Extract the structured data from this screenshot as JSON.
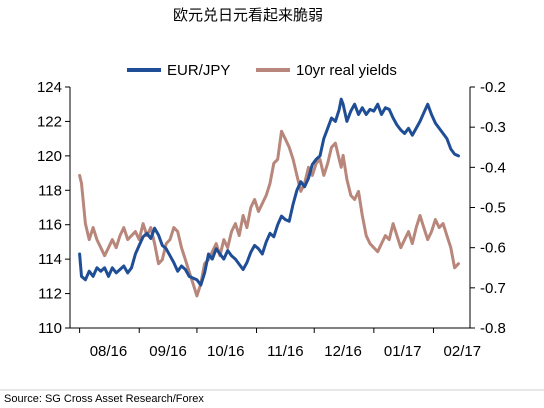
{
  "chart_data": {
    "type": "line",
    "title": "欧元兑日元看起来脆弱",
    "source": "Source: SG Cross Asset Research/Forex",
    "legend_position": "top",
    "grid": false,
    "x_labels": [
      "08/16",
      "09/16",
      "10/16",
      "11/16",
      "12/16",
      "01/17",
      "02/17"
    ],
    "y_left": {
      "ticks": [
        "124",
        "122",
        "120",
        "118",
        "116",
        "114",
        "112",
        "110"
      ],
      "range": [
        110,
        124
      ]
    },
    "y_right": {
      "ticks": [
        "-0.2",
        "-0.3",
        "-0.4",
        "-0.5",
        "-0.6",
        "-0.7",
        "-0.8"
      ],
      "range": [
        -0.8,
        -0.2
      ]
    },
    "series": [
      {
        "name": "EUR/JPY",
        "axis": "left",
        "color": "#1f4e96",
        "points": [
          [
            "2016-08-01",
            114.3
          ],
          [
            "2016-08-02",
            113.0
          ],
          [
            "2016-08-04",
            112.8
          ],
          [
            "2016-08-06",
            113.3
          ],
          [
            "2016-08-08",
            113.0
          ],
          [
            "2016-08-10",
            113.5
          ],
          [
            "2016-08-12",
            113.3
          ],
          [
            "2016-08-14",
            113.5
          ],
          [
            "2016-08-16",
            113.0
          ],
          [
            "2016-08-18",
            113.5
          ],
          [
            "2016-08-20",
            113.2
          ],
          [
            "2016-08-22",
            113.4
          ],
          [
            "2016-08-24",
            113.6
          ],
          [
            "2016-08-26",
            113.2
          ],
          [
            "2016-08-28",
            113.5
          ],
          [
            "2016-08-30",
            114.3
          ],
          [
            "2016-09-01",
            114.8
          ],
          [
            "2016-09-03",
            115.3
          ],
          [
            "2016-09-05",
            115.5
          ],
          [
            "2016-09-07",
            115.2
          ],
          [
            "2016-09-09",
            115.8
          ],
          [
            "2016-09-11",
            115.4
          ],
          [
            "2016-09-13",
            114.8
          ],
          [
            "2016-09-15",
            114.6
          ],
          [
            "2016-09-17",
            114.2
          ],
          [
            "2016-09-19",
            113.8
          ],
          [
            "2016-09-21",
            113.3
          ],
          [
            "2016-09-23",
            113.6
          ],
          [
            "2016-09-25",
            113.4
          ],
          [
            "2016-09-27",
            113.0
          ],
          [
            "2016-09-29",
            112.9
          ],
          [
            "2016-10-01",
            112.8
          ],
          [
            "2016-10-03",
            112.5
          ],
          [
            "2016-10-05",
            113.2
          ],
          [
            "2016-10-07",
            114.3
          ],
          [
            "2016-10-09",
            114.0
          ],
          [
            "2016-10-11",
            114.6
          ],
          [
            "2016-10-13",
            114.3
          ],
          [
            "2016-10-15",
            114.0
          ],
          [
            "2016-10-17",
            114.5
          ],
          [
            "2016-10-19",
            114.2
          ],
          [
            "2016-10-21",
            114.0
          ],
          [
            "2016-10-23",
            113.7
          ],
          [
            "2016-10-25",
            113.4
          ],
          [
            "2016-10-27",
            113.8
          ],
          [
            "2016-10-29",
            114.4
          ],
          [
            "2016-10-31",
            114.8
          ],
          [
            "2016-11-02",
            114.6
          ],
          [
            "2016-11-04",
            114.3
          ],
          [
            "2016-11-06",
            115.0
          ],
          [
            "2016-11-08",
            115.5
          ],
          [
            "2016-11-10",
            115.3
          ],
          [
            "2016-11-12",
            116.0
          ],
          [
            "2016-11-14",
            116.5
          ],
          [
            "2016-11-16",
            116.3
          ],
          [
            "2016-11-18",
            116.2
          ],
          [
            "2016-11-20",
            117.2
          ],
          [
            "2016-11-22",
            118.0
          ],
          [
            "2016-11-24",
            118.5
          ],
          [
            "2016-11-26",
            118.2
          ],
          [
            "2016-11-28",
            118.7
          ],
          [
            "2016-11-30",
            119.5
          ],
          [
            "2016-12-02",
            119.8
          ],
          [
            "2016-12-04",
            120.0
          ],
          [
            "2016-12-06",
            121.0
          ],
          [
            "2016-12-08",
            121.6
          ],
          [
            "2016-12-10",
            122.2
          ],
          [
            "2016-12-12",
            122.0
          ],
          [
            "2016-12-14",
            122.7
          ],
          [
            "2016-12-15",
            123.3
          ],
          [
            "2016-12-16",
            123.0
          ],
          [
            "2016-12-18",
            122.0
          ],
          [
            "2016-12-20",
            122.6
          ],
          [
            "2016-12-22",
            123.0
          ],
          [
            "2016-12-24",
            122.4
          ],
          [
            "2016-12-26",
            122.8
          ],
          [
            "2016-12-28",
            122.4
          ],
          [
            "2016-12-30",
            122.7
          ],
          [
            "2017-01-01",
            122.6
          ],
          [
            "2017-01-03",
            123.0
          ],
          [
            "2017-01-05",
            122.4
          ],
          [
            "2017-01-07",
            122.8
          ],
          [
            "2017-01-09",
            122.7
          ],
          [
            "2017-01-11",
            122.2
          ],
          [
            "2017-01-13",
            121.8
          ],
          [
            "2017-01-15",
            121.5
          ],
          [
            "2017-01-17",
            121.3
          ],
          [
            "2017-01-19",
            121.6
          ],
          [
            "2017-01-21",
            121.2
          ],
          [
            "2017-01-23",
            121.6
          ],
          [
            "2017-01-25",
            122.0
          ],
          [
            "2017-01-27",
            122.5
          ],
          [
            "2017-01-29",
            123.0
          ],
          [
            "2017-01-31",
            122.4
          ],
          [
            "2017-02-02",
            121.9
          ],
          [
            "2017-02-04",
            121.6
          ],
          [
            "2017-02-06",
            121.3
          ],
          [
            "2017-02-08",
            121.0
          ],
          [
            "2017-02-10",
            120.4
          ],
          [
            "2017-02-12",
            120.1
          ],
          [
            "2017-02-14",
            120.0
          ]
        ]
      },
      {
        "name": "10yr real yields",
        "axis": "right",
        "color": "#b8867a",
        "points": [
          [
            "2016-08-01",
            -0.42
          ],
          [
            "2016-08-02",
            -0.44
          ],
          [
            "2016-08-04",
            -0.54
          ],
          [
            "2016-08-06",
            -0.58
          ],
          [
            "2016-08-08",
            -0.55
          ],
          [
            "2016-08-10",
            -0.58
          ],
          [
            "2016-08-12",
            -0.6
          ],
          [
            "2016-08-14",
            -0.62
          ],
          [
            "2016-08-16",
            -0.6
          ],
          [
            "2016-08-18",
            -0.58
          ],
          [
            "2016-08-20",
            -0.6
          ],
          [
            "2016-08-22",
            -0.57
          ],
          [
            "2016-08-24",
            -0.55
          ],
          [
            "2016-08-26",
            -0.58
          ],
          [
            "2016-08-28",
            -0.57
          ],
          [
            "2016-08-30",
            -0.56
          ],
          [
            "2016-09-01",
            -0.58
          ],
          [
            "2016-09-03",
            -0.54
          ],
          [
            "2016-09-05",
            -0.57
          ],
          [
            "2016-09-07",
            -0.55
          ],
          [
            "2016-09-09",
            -0.59
          ],
          [
            "2016-09-11",
            -0.64
          ],
          [
            "2016-09-13",
            -0.63
          ],
          [
            "2016-09-15",
            -0.59
          ],
          [
            "2016-09-17",
            -0.58
          ],
          [
            "2016-09-19",
            -0.55
          ],
          [
            "2016-09-21",
            -0.56
          ],
          [
            "2016-09-23",
            -0.6
          ],
          [
            "2016-09-25",
            -0.63
          ],
          [
            "2016-09-27",
            -0.66
          ],
          [
            "2016-09-29",
            -0.69
          ],
          [
            "2016-10-01",
            -0.72
          ],
          [
            "2016-10-03",
            -0.69
          ],
          [
            "2016-10-05",
            -0.64
          ],
          [
            "2016-10-07",
            -0.63
          ],
          [
            "2016-10-09",
            -0.61
          ],
          [
            "2016-10-11",
            -0.59
          ],
          [
            "2016-10-13",
            -0.62
          ],
          [
            "2016-10-15",
            -0.58
          ],
          [
            "2016-10-17",
            -0.6
          ],
          [
            "2016-10-19",
            -0.56
          ],
          [
            "2016-10-21",
            -0.54
          ],
          [
            "2016-10-23",
            -0.57
          ],
          [
            "2016-10-25",
            -0.52
          ],
          [
            "2016-10-27",
            -0.55
          ],
          [
            "2016-10-29",
            -0.5
          ],
          [
            "2016-10-31",
            -0.48
          ],
          [
            "2016-11-02",
            -0.51
          ],
          [
            "2016-11-04",
            -0.49
          ],
          [
            "2016-11-06",
            -0.47
          ],
          [
            "2016-11-08",
            -0.44
          ],
          [
            "2016-11-10",
            -0.39
          ],
          [
            "2016-11-12",
            -0.38
          ],
          [
            "2016-11-14",
            -0.31
          ],
          [
            "2016-11-16",
            -0.33
          ],
          [
            "2016-11-18",
            -0.35
          ],
          [
            "2016-11-20",
            -0.38
          ],
          [
            "2016-11-22",
            -0.42
          ],
          [
            "2016-11-24",
            -0.46
          ],
          [
            "2016-11-26",
            -0.44
          ],
          [
            "2016-11-28",
            -0.4
          ],
          [
            "2016-11-30",
            -0.42
          ],
          [
            "2016-12-02",
            -0.39
          ],
          [
            "2016-12-04",
            -0.38
          ],
          [
            "2016-12-06",
            -0.42
          ],
          [
            "2016-12-08",
            -0.39
          ],
          [
            "2016-12-10",
            -0.35
          ],
          [
            "2016-12-12",
            -0.34
          ],
          [
            "2016-12-14",
            -0.38
          ],
          [
            "2016-12-15",
            -0.4
          ],
          [
            "2016-12-16",
            -0.37
          ],
          [
            "2016-12-18",
            -0.43
          ],
          [
            "2016-12-20",
            -0.47
          ],
          [
            "2016-12-22",
            -0.48
          ],
          [
            "2016-12-24",
            -0.46
          ],
          [
            "2016-12-26",
            -0.52
          ],
          [
            "2016-12-28",
            -0.57
          ],
          [
            "2016-12-30",
            -0.59
          ],
          [
            "2017-01-01",
            -0.6
          ],
          [
            "2017-01-03",
            -0.61
          ],
          [
            "2017-01-05",
            -0.59
          ],
          [
            "2017-01-07",
            -0.57
          ],
          [
            "2017-01-09",
            -0.58
          ],
          [
            "2017-01-11",
            -0.54
          ],
          [
            "2017-01-13",
            -0.57
          ],
          [
            "2017-01-15",
            -0.6
          ],
          [
            "2017-01-17",
            -0.58
          ],
          [
            "2017-01-19",
            -0.56
          ],
          [
            "2017-01-21",
            -0.59
          ],
          [
            "2017-01-23",
            -0.55
          ],
          [
            "2017-01-25",
            -0.52
          ],
          [
            "2017-01-27",
            -0.55
          ],
          [
            "2017-01-29",
            -0.58
          ],
          [
            "2017-01-31",
            -0.56
          ],
          [
            "2017-02-02",
            -0.53
          ],
          [
            "2017-02-04",
            -0.55
          ],
          [
            "2017-02-06",
            -0.54
          ],
          [
            "2017-02-08",
            -0.57
          ],
          [
            "2017-02-10",
            -0.6
          ],
          [
            "2017-02-12",
            -0.65
          ],
          [
            "2017-02-14",
            -0.64
          ]
        ]
      }
    ]
  }
}
